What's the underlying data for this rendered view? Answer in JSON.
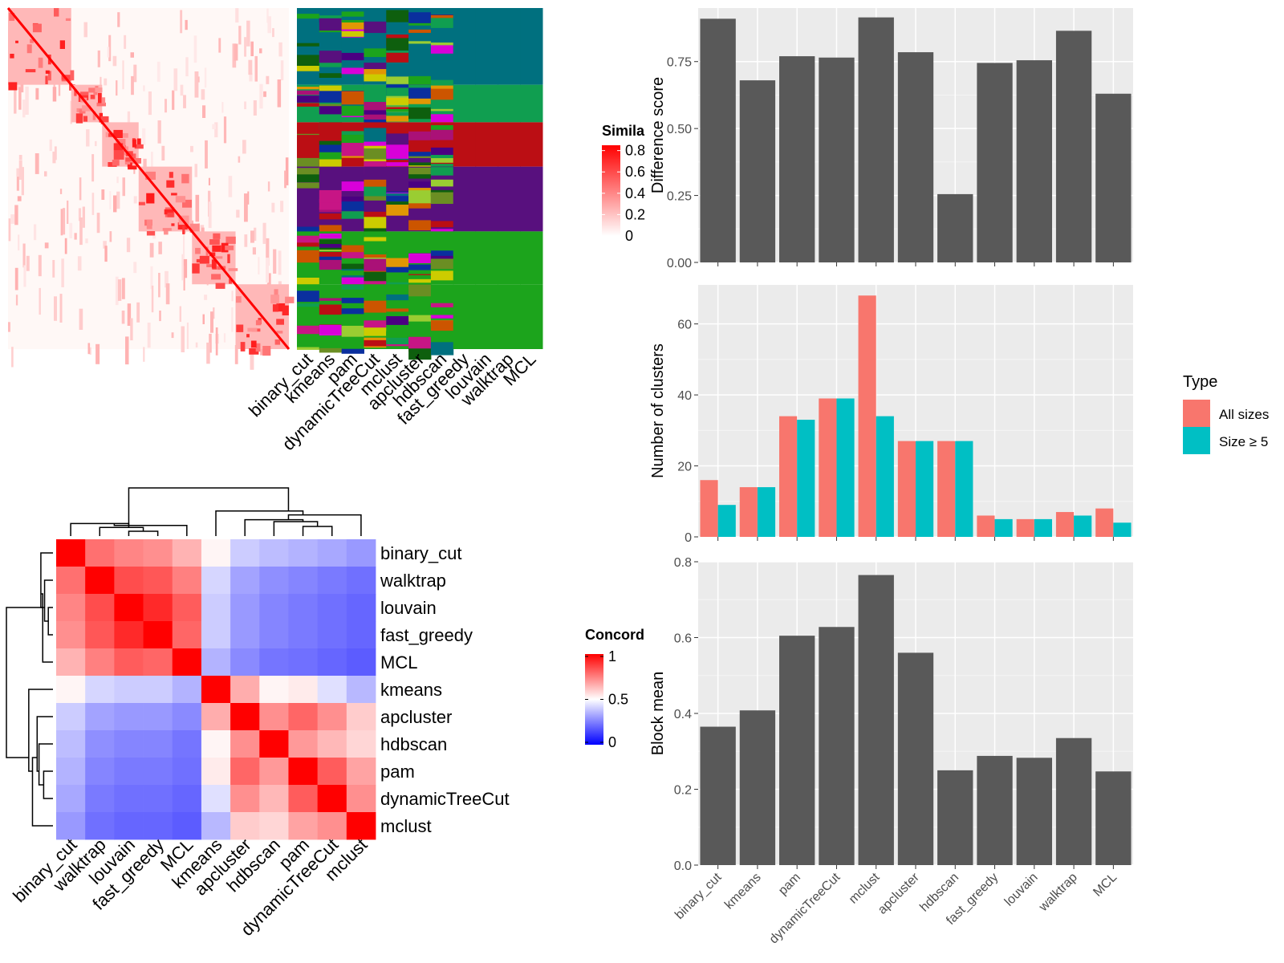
{
  "colors": {
    "panel_bg": "#EBEBEB",
    "grid": "#FFFFFF",
    "bar_fill": "#595959",
    "all_sizes": "#F8766D",
    "size_ge5": "#00BFC4",
    "heat_red": "#FF0000",
    "heat_white": "#FFFFFF",
    "heat_blue": "#0000FF",
    "tree_line": "#000000"
  },
  "similarity": {
    "legend_title": "Simila",
    "legend_ticks": [
      "0.8",
      "0.6",
      "0.4",
      "0.2",
      "0"
    ],
    "legend_values": [
      0.8,
      0.6,
      0.4,
      0.2,
      0
    ],
    "block_fractions": [
      0.225,
      0.11,
      0.13,
      0.19,
      0.155,
      0.19
    ],
    "method_labels": [
      "binary_cut",
      "kmeans",
      "pam",
      "dynamicTreeCut",
      "mclust",
      "apcluster",
      "hdbscan",
      "fast_greedy",
      "louvain",
      "walktrap",
      "MCL"
    ],
    "class_palette": [
      "#00707F",
      "#109E50",
      "#BB0E14",
      "#58107E",
      "#1CA41C",
      "#E19704",
      "#CC5500",
      "#6B8E23",
      "#D900D9",
      "#0A2F9E",
      "#CCCC00",
      "#AA1177",
      "#0E5F0E",
      "#4B0082",
      "#9ACD32",
      "#C71585"
    ]
  },
  "concordance": {
    "legend_title": "Concord",
    "legend_ticks": [
      "1",
      "0.5",
      "0"
    ],
    "legend_values": [
      1,
      0.5,
      0
    ],
    "row_labels": [
      "binary_cut",
      "walktrap",
      "louvain",
      "fast_greedy",
      "MCL",
      "kmeans",
      "apcluster",
      "hdbscan",
      "pam",
      "dynamicTreeCut",
      "mclust"
    ],
    "col_labels": [
      "binary_cut",
      "walktrap",
      "louvain",
      "fast_greedy",
      "MCL",
      "kmeans",
      "apcluster",
      "hdbscan",
      "pam",
      "dynamicTreeCut",
      "mclust"
    ],
    "matrix": [
      [
        1.0,
        0.78,
        0.74,
        0.72,
        0.65,
        0.52,
        0.4,
        0.37,
        0.35,
        0.33,
        0.3
      ],
      [
        0.78,
        1.0,
        0.85,
        0.83,
        0.75,
        0.42,
        0.32,
        0.28,
        0.26,
        0.24,
        0.22
      ],
      [
        0.74,
        0.85,
        1.0,
        0.92,
        0.82,
        0.4,
        0.3,
        0.26,
        0.24,
        0.22,
        0.2
      ],
      [
        0.72,
        0.83,
        0.92,
        1.0,
        0.8,
        0.4,
        0.3,
        0.26,
        0.24,
        0.22,
        0.2
      ],
      [
        0.65,
        0.75,
        0.82,
        0.8,
        1.0,
        0.35,
        0.27,
        0.23,
        0.22,
        0.2,
        0.18
      ],
      [
        0.52,
        0.42,
        0.4,
        0.4,
        0.35,
        1.0,
        0.66,
        0.52,
        0.54,
        0.44,
        0.36
      ],
      [
        0.4,
        0.32,
        0.3,
        0.3,
        0.27,
        0.66,
        1.0,
        0.72,
        0.8,
        0.72,
        0.6
      ],
      [
        0.37,
        0.28,
        0.26,
        0.26,
        0.23,
        0.52,
        0.72,
        1.0,
        0.7,
        0.64,
        0.58
      ],
      [
        0.35,
        0.26,
        0.24,
        0.24,
        0.22,
        0.54,
        0.8,
        0.7,
        1.0,
        0.82,
        0.68
      ],
      [
        0.33,
        0.24,
        0.22,
        0.22,
        0.2,
        0.44,
        0.72,
        0.64,
        0.82,
        1.0,
        0.72
      ],
      [
        0.3,
        0.22,
        0.2,
        0.2,
        0.18,
        0.36,
        0.6,
        0.58,
        0.68,
        0.72,
        1.0
      ]
    ]
  },
  "chart_data": [
    {
      "type": "bar",
      "categories": [
        "binary_cut",
        "kmeans",
        "pam",
        "dynamicTreeCut",
        "mclust",
        "apcluster",
        "hdbscan",
        "fast_greedy",
        "louvain",
        "walktrap",
        "MCL"
      ],
      "values": [
        0.91,
        0.68,
        0.77,
        0.765,
        0.915,
        0.785,
        0.255,
        0.745,
        0.755,
        0.865,
        0.63
      ],
      "title": "",
      "xlabel": "",
      "ylabel": "Difference score",
      "ylim": [
        0,
        0.95
      ],
      "yticks": [
        0,
        0.25,
        0.5,
        0.75
      ],
      "ytick_labels": [
        "0.00",
        "0.25",
        "0.50",
        "0.75"
      ],
      "grid": true
    },
    {
      "type": "bar",
      "categories": [
        "binary_cut",
        "kmeans",
        "pam",
        "dynamicTreeCut",
        "mclust",
        "apcluster",
        "hdbscan",
        "fast_greedy",
        "louvain",
        "walktrap",
        "MCL"
      ],
      "series": [
        {
          "name": "All sizes",
          "values": [
            16,
            14,
            34,
            39,
            68,
            27,
            27,
            6,
            5,
            7,
            8
          ]
        },
        {
          "name": "Size ≥ 5",
          "values": [
            9,
            14,
            33,
            39,
            34,
            27,
            27,
            5,
            5,
            6,
            4
          ]
        }
      ],
      "title": "",
      "xlabel": "",
      "ylabel": "Number of clusters",
      "ylim": [
        0,
        71
      ],
      "yticks": [
        0,
        20,
        40,
        60
      ],
      "ytick_labels": [
        "0",
        "20",
        "40",
        "60"
      ],
      "legend_title": "Type",
      "legend_position": "right",
      "grid": true
    },
    {
      "type": "bar",
      "categories": [
        "binary_cut",
        "kmeans",
        "pam",
        "dynamicTreeCut",
        "mclust",
        "apcluster",
        "hdbscan",
        "fast_greedy",
        "louvain",
        "walktrap",
        "MCL"
      ],
      "values": [
        0.365,
        0.408,
        0.605,
        0.628,
        0.765,
        0.56,
        0.25,
        0.288,
        0.283,
        0.335,
        0.247
      ],
      "title": "",
      "xlabel": "",
      "ylabel": "Block mean",
      "ylim": [
        0,
        0.8
      ],
      "yticks": [
        0,
        0.2,
        0.4,
        0.6,
        0.8
      ],
      "ytick_labels": [
        "0.0",
        "0.2",
        "0.4",
        "0.6",
        "0.8"
      ],
      "grid": true
    }
  ]
}
